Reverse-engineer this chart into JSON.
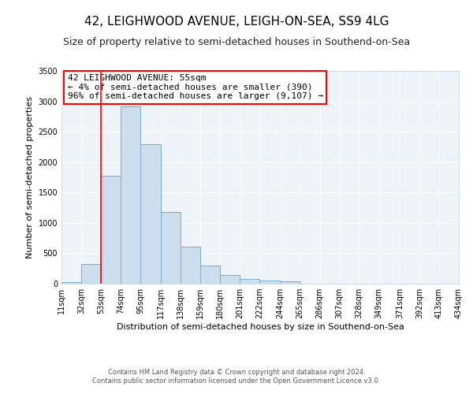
{
  "title": "42, LEIGHWOOD AVENUE, LEIGH-ON-SEA, SS9 4LG",
  "subtitle": "Size of property relative to semi-detached houses in Southend-on-Sea",
  "xlabel": "Distribution of semi-detached houses by size in Southend-on-Sea",
  "ylabel": "Number of semi-detached properties",
  "bin_edges": [
    11,
    32,
    53,
    74,
    95,
    117,
    138,
    159,
    180,
    201,
    222,
    244,
    265,
    286,
    307,
    328,
    349,
    371,
    392,
    413,
    434
  ],
  "bar_heights": [
    20,
    330,
    1780,
    2920,
    2300,
    1175,
    605,
    300,
    140,
    80,
    55,
    45,
    0,
    0,
    0,
    0,
    0,
    0,
    0,
    0
  ],
  "bar_color": "#ccdded",
  "bar_edge_color": "#7aadd0",
  "red_line_x": 53,
  "ylim": [
    0,
    3500
  ],
  "yticks": [
    0,
    500,
    1000,
    1500,
    2000,
    2500,
    3000,
    3500
  ],
  "annotation_title": "42 LEIGHWOOD AVENUE: 55sqm",
  "annotation_line1": "← 4% of semi-detached houses are smaller (390)",
  "annotation_line2": "96% of semi-detached houses are larger (9,107) →",
  "footer_line1": "Contains HM Land Registry data © Crown copyright and database right 2024.",
  "footer_line2": "Contains public sector information licensed under the Open Government Licence v3.0.",
  "background_color": "#ffffff",
  "plot_bg_color": "#eef3f8",
  "title_fontsize": 11,
  "subtitle_fontsize": 9,
  "annotation_fontsize": 8,
  "footer_fontsize": 6,
  "ylabel_fontsize": 8,
  "xlabel_fontsize": 8,
  "tick_fontsize": 7
}
